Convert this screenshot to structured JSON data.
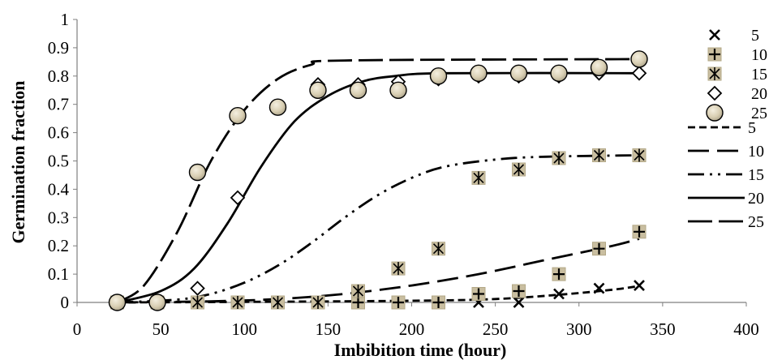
{
  "chart_data": {
    "type": "scatter",
    "title": "",
    "xlabel": "Imbibition time (hour)",
    "ylabel": "Germination fraction",
    "xlim": [
      0,
      400
    ],
    "ylim": [
      0,
      1
    ],
    "x_ticks": [
      "0",
      "50",
      "100",
      "150",
      "200",
      "250",
      "300",
      "350",
      "400"
    ],
    "y_ticks": [
      "0",
      "0.1",
      "0.2",
      "0.3",
      "0.4",
      "0.5",
      "0.6",
      "0.7",
      "0.8",
      "0.9",
      "1"
    ],
    "grid": false,
    "legend_position": "right",
    "observed": [
      {
        "name": "5",
        "marker": "x",
        "points": [
          [
            24,
            0
          ],
          [
            48,
            0
          ],
          [
            72,
            0
          ],
          [
            96,
            0
          ],
          [
            120,
            0
          ],
          [
            144,
            0
          ],
          [
            168,
            0
          ],
          [
            192,
            0
          ],
          [
            216,
            0
          ],
          [
            240,
            0
          ],
          [
            264,
            0
          ],
          [
            288,
            0.03
          ],
          [
            312,
            0.05
          ],
          [
            336,
            0.06
          ]
        ]
      },
      {
        "name": "10",
        "marker": "plus-square",
        "points": [
          [
            24,
            0
          ],
          [
            48,
            0
          ],
          [
            72,
            0
          ],
          [
            96,
            0
          ],
          [
            120,
            0
          ],
          [
            144,
            0
          ],
          [
            168,
            0
          ],
          [
            192,
            0
          ],
          [
            216,
            0
          ],
          [
            240,
            0.03
          ],
          [
            264,
            0.04
          ],
          [
            288,
            0.1
          ],
          [
            312,
            0.19
          ],
          [
            336,
            0.25
          ]
        ]
      },
      {
        "name": "15",
        "marker": "star-square",
        "points": [
          [
            24,
            0
          ],
          [
            48,
            0
          ],
          [
            72,
            0
          ],
          [
            96,
            0
          ],
          [
            120,
            0
          ],
          [
            144,
            0
          ],
          [
            168,
            0.04
          ],
          [
            192,
            0.12
          ],
          [
            216,
            0.19
          ],
          [
            240,
            0.44
          ],
          [
            264,
            0.47
          ],
          [
            288,
            0.51
          ],
          [
            312,
            0.52
          ],
          [
            336,
            0.52
          ]
        ]
      },
      {
        "name": "20",
        "marker": "diamond",
        "points": [
          [
            24,
            0
          ],
          [
            48,
            0
          ],
          [
            72,
            0.05
          ],
          [
            96,
            0.37
          ],
          [
            120,
            0.69
          ],
          [
            144,
            0.77
          ],
          [
            168,
            0.77
          ],
          [
            192,
            0.78
          ],
          [
            216,
            0.79
          ],
          [
            240,
            0.8
          ],
          [
            264,
            0.8
          ],
          [
            288,
            0.8
          ],
          [
            312,
            0.81
          ],
          [
            336,
            0.81
          ]
        ]
      },
      {
        "name": "25",
        "marker": "circle",
        "points": [
          [
            24,
            0
          ],
          [
            48,
            0
          ],
          [
            72,
            0.46
          ],
          [
            96,
            0.66
          ],
          [
            120,
            0.69
          ],
          [
            144,
            0.75
          ],
          [
            168,
            0.75
          ],
          [
            192,
            0.75
          ],
          [
            216,
            0.8
          ],
          [
            240,
            0.81
          ],
          [
            264,
            0.81
          ],
          [
            288,
            0.81
          ],
          [
            312,
            0.83
          ],
          [
            336,
            0.86
          ]
        ]
      }
    ],
    "fitted": [
      {
        "name": "5",
        "dash": "short-dash",
        "points": [
          [
            24,
            0
          ],
          [
            100,
            0.002
          ],
          [
            200,
            0.006
          ],
          [
            250,
            0.012
          ],
          [
            290,
            0.028
          ],
          [
            320,
            0.045
          ],
          [
            336,
            0.058
          ]
        ]
      },
      {
        "name": "10",
        "dash": "long-dash",
        "points": [
          [
            24,
            0
          ],
          [
            80,
            0.004
          ],
          [
            120,
            0.012
          ],
          [
            160,
            0.03
          ],
          [
            200,
            0.06
          ],
          [
            240,
            0.1
          ],
          [
            280,
            0.15
          ],
          [
            320,
            0.2
          ],
          [
            336,
            0.225
          ]
        ]
      },
      {
        "name": "15",
        "dash": "dash-dot-dot",
        "points": [
          [
            24,
            0
          ],
          [
            60,
            0.01
          ],
          [
            80,
            0.03
          ],
          [
            100,
            0.07
          ],
          [
            120,
            0.13
          ],
          [
            140,
            0.21
          ],
          [
            160,
            0.3
          ],
          [
            180,
            0.38
          ],
          [
            200,
            0.44
          ],
          [
            220,
            0.48
          ],
          [
            250,
            0.505
          ],
          [
            280,
            0.515
          ],
          [
            336,
            0.52
          ]
        ]
      },
      {
        "name": "20",
        "dash": "solid",
        "points": [
          [
            24,
            0
          ],
          [
            50,
            0.04
          ],
          [
            70,
            0.12
          ],
          [
            90,
            0.28
          ],
          [
            110,
            0.48
          ],
          [
            130,
            0.64
          ],
          [
            150,
            0.73
          ],
          [
            170,
            0.78
          ],
          [
            190,
            0.8
          ],
          [
            220,
            0.81
          ],
          [
            336,
            0.81
          ]
        ]
      },
      {
        "name": "25",
        "dash": "dash",
        "points": [
          [
            24,
            0
          ],
          [
            40,
            0.06
          ],
          [
            60,
            0.25
          ],
          [
            80,
            0.5
          ],
          [
            100,
            0.68
          ],
          [
            120,
            0.79
          ],
          [
            140,
            0.84
          ],
          [
            160,
            0.855
          ],
          [
            336,
            0.86
          ]
        ]
      }
    ]
  }
}
